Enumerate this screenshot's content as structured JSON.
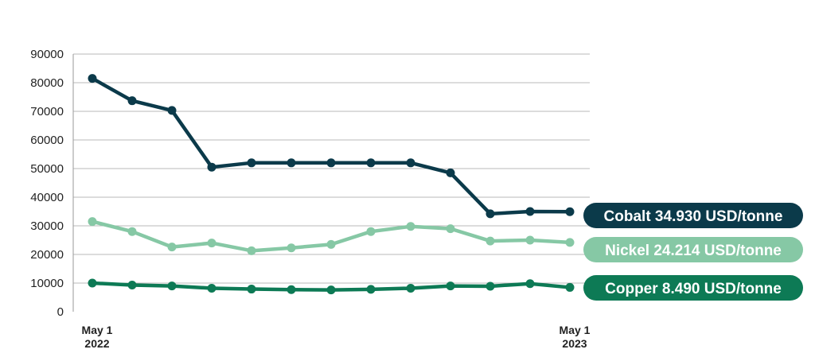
{
  "chart_data": {
    "type": "line",
    "title": "",
    "xlabel": "",
    "ylabel": "",
    "ylim": [
      0,
      90000
    ],
    "yticks": [
      0,
      10000,
      20000,
      30000,
      40000,
      50000,
      60000,
      70000,
      80000,
      90000
    ],
    "x_points": 13,
    "x_labels": [
      {
        "index": 0,
        "lines": [
          "May 1",
          "2022"
        ]
      },
      {
        "index": 12,
        "lines": [
          "May 1",
          "2023"
        ]
      }
    ],
    "grid": "horizontal",
    "legend": "right-end-labels",
    "series": [
      {
        "name": "Cobalt",
        "label": "Cobalt 34.930 USD/tonne",
        "color": "#0b3a4a",
        "values": [
          81500,
          73700,
          70300,
          50500,
          52000,
          52000,
          52000,
          52000,
          52000,
          48500,
          34200,
          35000,
          34930
        ]
      },
      {
        "name": "Nickel",
        "label": "Nickel 24.214 USD/tonne",
        "color": "#86c8a5",
        "values": [
          31500,
          28000,
          22600,
          24000,
          21300,
          22300,
          23500,
          28000,
          29800,
          29000,
          24700,
          25000,
          24214
        ]
      },
      {
        "name": "Copper",
        "label": "Copper 8.490 USD/tonne",
        "color": "#0d7a55",
        "values": [
          10000,
          9300,
          9000,
          8200,
          7900,
          7700,
          7600,
          7800,
          8200,
          9000,
          8900,
          9800,
          8490
        ]
      }
    ]
  }
}
